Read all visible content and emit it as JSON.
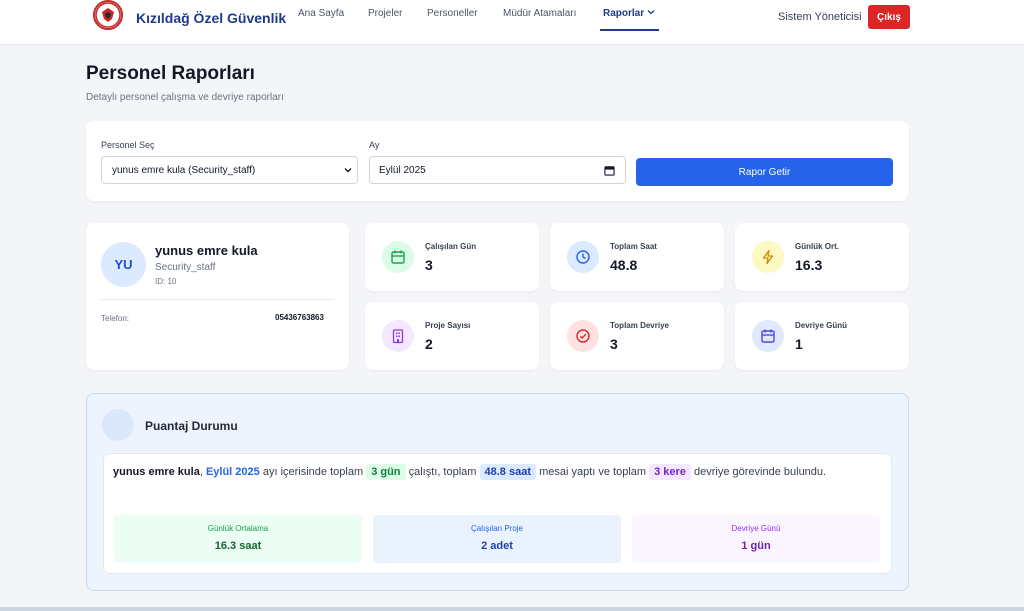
{
  "nav": {
    "brand": "Kızıldağ Özel Güvenlik",
    "links": [
      "Ana Sayfa",
      "Projeler",
      "Personeller",
      "Müdür Atamaları",
      "Raporlar"
    ],
    "user": "Sistem Yöneticisi",
    "logout": "Çıkış"
  },
  "header": {
    "title": "Personel Raporları",
    "subtitle": "Detaylı personel çalışma ve devriye raporları"
  },
  "filters": {
    "personel_label": "Personel Seç",
    "personel_value": "yunus emre kula (Security_staff)",
    "month_label": "Ay",
    "month_value": "Eylül 2025",
    "button": "Rapor Getir"
  },
  "profile": {
    "initials": "YU",
    "name": "yunus emre kula",
    "role": "Security_staff",
    "id": "ID: 10",
    "phone_label": "Telefon:",
    "phone": "05436763863"
  },
  "stats": [
    {
      "label": "Çalışılan Gün",
      "value": "3",
      "icon": "calendar-icon",
      "bg": "#dcfce7",
      "color": "#16a34a"
    },
    {
      "label": "Toplam Saat",
      "value": "48.8",
      "icon": "clock-icon",
      "bg": "#dbeafe",
      "color": "#2563eb"
    },
    {
      "label": "Günlük Ort.",
      "value": "16.3",
      "icon": "lightning-icon",
      "bg": "#fef9c3",
      "color": "#ca8a04"
    },
    {
      "label": "Proje Sayısı",
      "value": "2",
      "icon": "building-icon",
      "bg": "#f3e8ff",
      "color": "#9333ea"
    },
    {
      "label": "Toplam Devriye",
      "value": "3",
      "icon": "check-circle-icon",
      "bg": "#fee2e2",
      "color": "#dc2626"
    },
    {
      "label": "Devriye Günü",
      "value": "1",
      "icon": "calendar-icon",
      "bg": "#e0e7ff",
      "color": "#4f46e5"
    }
  ],
  "puantaj": {
    "title": "Puantaj Durumu",
    "name": "yunus emre kula",
    "comma": ",",
    "month": "Eylül 2025",
    "t1": "ayı içerisinde toplam",
    "days": "3 gün",
    "t2": "çalıştı, toplam",
    "hours": "48.8 saat",
    "t3": "mesai yaptı ve toplam",
    "patrols": "3 kere",
    "t4": "devriye görevinde bulundu.",
    "summary": [
      {
        "label": "Günlük Ortalama",
        "value": "16.3 saat",
        "bg": "#ecfdf3",
        "label_color": "#16a34a",
        "value_color": "#166534"
      },
      {
        "label": "Çalışılan Proje",
        "value": "2 adet",
        "bg": "#eaf2fe",
        "label_color": "#2563eb",
        "value_color": "#1e40af"
      },
      {
        "label": "Devriye Günü",
        "value": "1 gün",
        "bg": "#faf5ff",
        "label_color": "#9333ea",
        "value_color": "#6b21a8"
      }
    ]
  }
}
